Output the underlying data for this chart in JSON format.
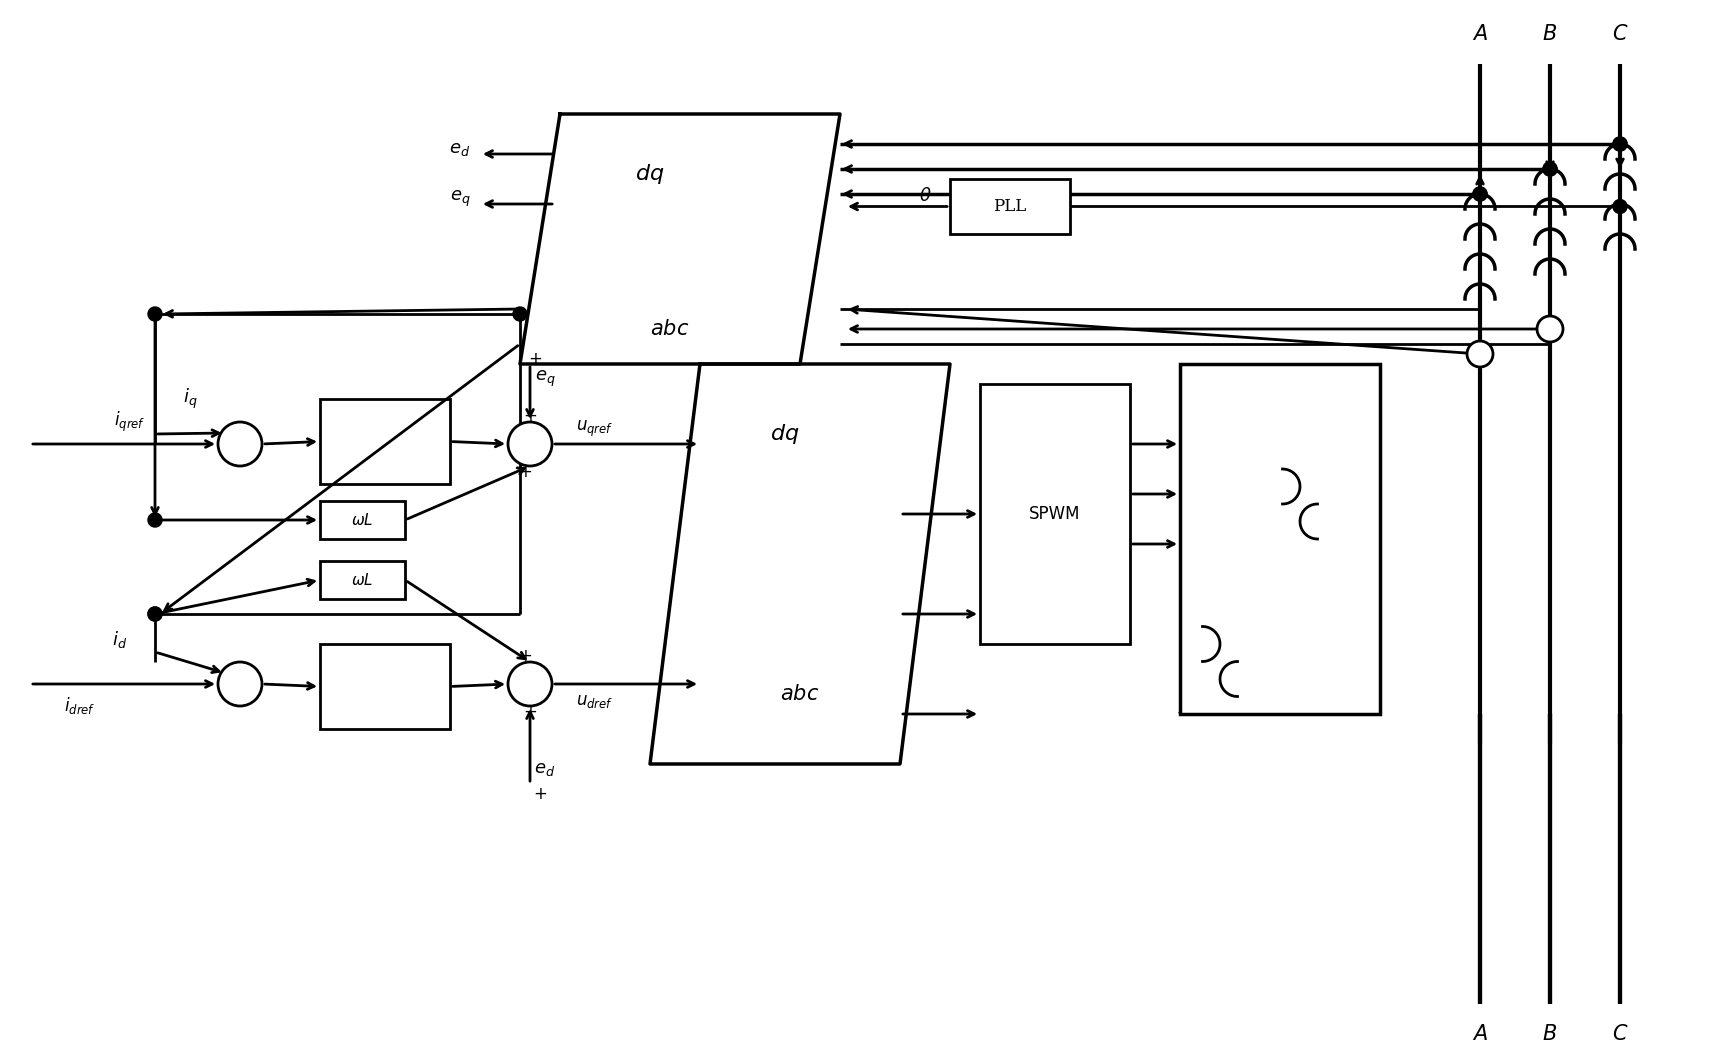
{
  "figsize": [
    17.13,
    10.64
  ],
  "dpi": 100,
  "bg_color": "#ffffff",
  "line_color": "#000000",
  "lw": 2.0,
  "arrow_lw": 2.0,
  "font_size": 13,
  "title_font_size": 11
}
